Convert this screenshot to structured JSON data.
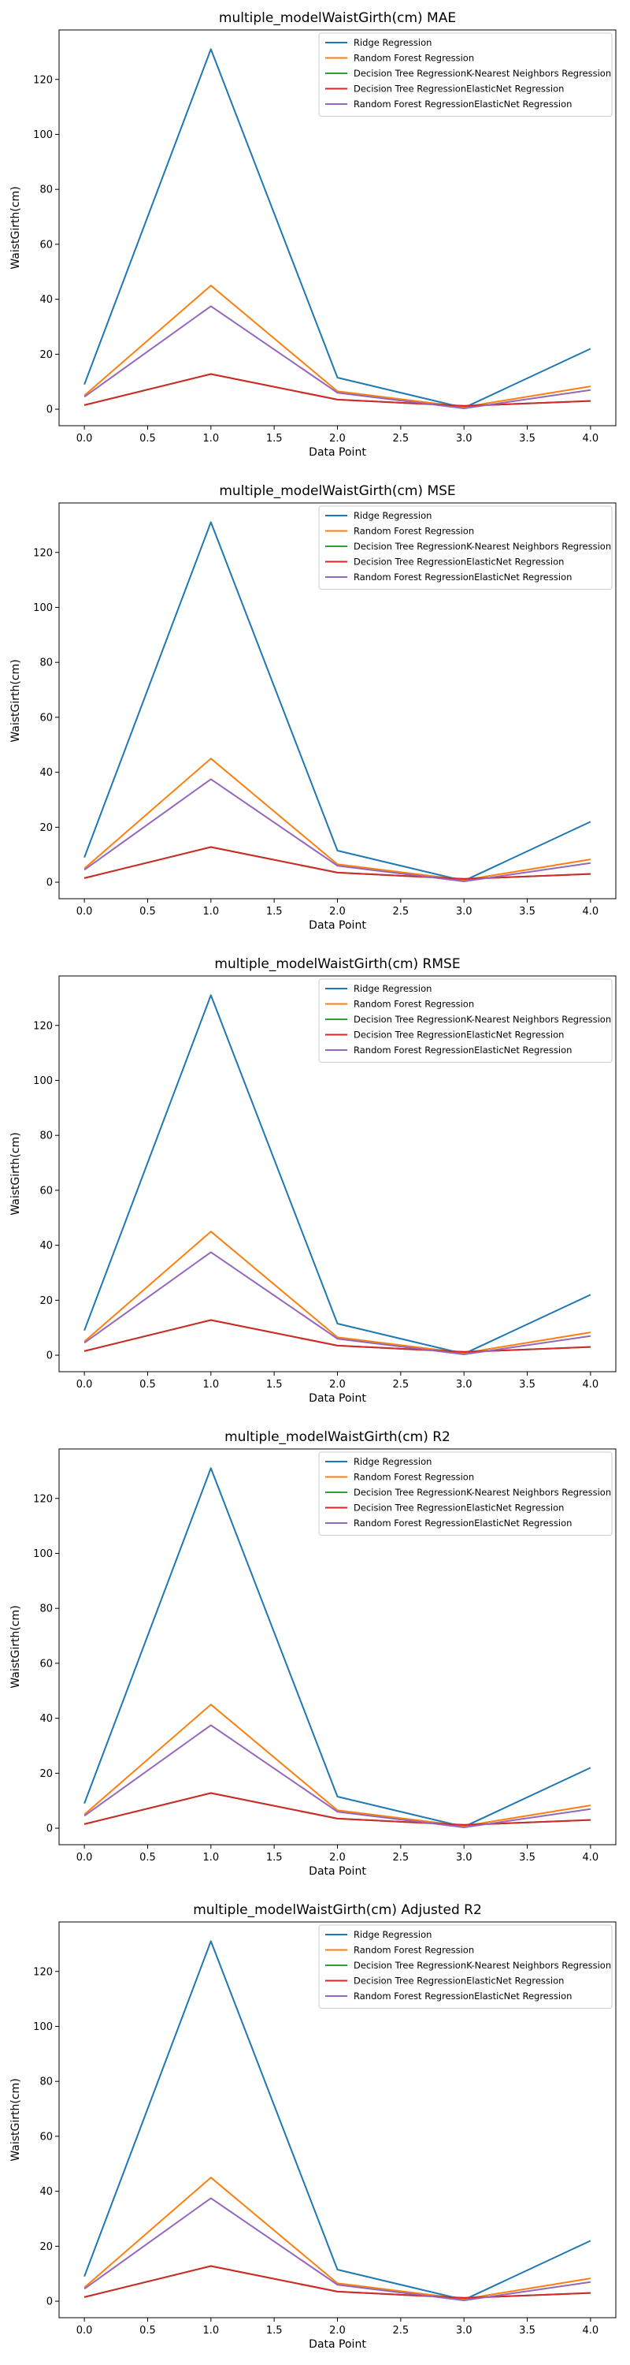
{
  "chart_data": [
    {
      "type": "line",
      "title": "multiple_modelWaistGirth(cm) MAE",
      "xlabel": "Data Point",
      "ylabel": "WaistGirth(cm)",
      "x": [
        0,
        1,
        2,
        3,
        4
      ],
      "xlim": [
        -0.2,
        4.2
      ],
      "ylim": [
        -6,
        138
      ],
      "xticks": [
        "0.0",
        "0.5",
        "1.0",
        "1.5",
        "2.0",
        "2.5",
        "3.0",
        "3.5",
        "4.0"
      ],
      "yticks": [
        "0",
        "20",
        "40",
        "60",
        "80",
        "100",
        "120"
      ],
      "legend_position": "top-right",
      "grid": false,
      "series": [
        {
          "name": "Ridge Regression",
          "color": "#1f77b4",
          "values": [
            9,
            131,
            11.5,
            0.5,
            22
          ]
        },
        {
          "name": "Random Forest Regression",
          "color": "#ff7f0e",
          "values": [
            5,
            45,
            6.5,
            0.8,
            8.3
          ]
        },
        {
          "name": "Decision Tree RegressionK-Nearest Neighbors Regression",
          "color": "#2ca02c",
          "values": [
            1.5,
            12.8,
            3.5,
            1.2,
            3.0
          ]
        },
        {
          "name": "Decision Tree RegressionElasticNet Regression",
          "color": "#d62728",
          "values": [
            1.5,
            12.8,
            3.5,
            1.2,
            3.0
          ]
        },
        {
          "name": "Random Forest RegressionElasticNet Regression",
          "color": "#9467bd",
          "values": [
            4.5,
            37.5,
            6,
            0.3,
            7
          ]
        }
      ]
    },
    {
      "type": "line",
      "title": "multiple_modelWaistGirth(cm) MSE",
      "xlabel": "Data Point",
      "ylabel": "WaistGirth(cm)",
      "x": [
        0,
        1,
        2,
        3,
        4
      ],
      "xlim": [
        -0.2,
        4.2
      ],
      "ylim": [
        -6,
        138
      ],
      "xticks": [
        "0.0",
        "0.5",
        "1.0",
        "1.5",
        "2.0",
        "2.5",
        "3.0",
        "3.5",
        "4.0"
      ],
      "yticks": [
        "0",
        "20",
        "40",
        "60",
        "80",
        "100",
        "120"
      ],
      "legend_position": "top-right",
      "grid": false,
      "series": [
        {
          "name": "Ridge Regression",
          "color": "#1f77b4",
          "values": [
            9,
            131,
            11.5,
            0.5,
            22
          ]
        },
        {
          "name": "Random Forest Regression",
          "color": "#ff7f0e",
          "values": [
            5,
            45,
            6.5,
            0.8,
            8.3
          ]
        },
        {
          "name": "Decision Tree RegressionK-Nearest Neighbors Regression",
          "color": "#2ca02c",
          "values": [
            1.5,
            12.8,
            3.5,
            1.2,
            3.0
          ]
        },
        {
          "name": "Decision Tree RegressionElasticNet Regression",
          "color": "#d62728",
          "values": [
            1.5,
            12.8,
            3.5,
            1.2,
            3.0
          ]
        },
        {
          "name": "Random Forest RegressionElasticNet Regression",
          "color": "#9467bd",
          "values": [
            4.5,
            37.5,
            6,
            0.3,
            7
          ]
        }
      ]
    },
    {
      "type": "line",
      "title": "multiple_modelWaistGirth(cm) RMSE",
      "xlabel": "Data Point",
      "ylabel": "WaistGirth(cm)",
      "x": [
        0,
        1,
        2,
        3,
        4
      ],
      "xlim": [
        -0.2,
        4.2
      ],
      "ylim": [
        -6,
        138
      ],
      "xticks": [
        "0.0",
        "0.5",
        "1.0",
        "1.5",
        "2.0",
        "2.5",
        "3.0",
        "3.5",
        "4.0"
      ],
      "yticks": [
        "0",
        "20",
        "40",
        "60",
        "80",
        "100",
        "120"
      ],
      "legend_position": "top-right",
      "grid": false,
      "series": [
        {
          "name": "Ridge Regression",
          "color": "#1f77b4",
          "values": [
            9,
            131,
            11.5,
            0.5,
            22
          ]
        },
        {
          "name": "Random Forest Regression",
          "color": "#ff7f0e",
          "values": [
            5,
            45,
            6.5,
            0.8,
            8.3
          ]
        },
        {
          "name": "Decision Tree RegressionK-Nearest Neighbors Regression",
          "color": "#2ca02c",
          "values": [
            1.5,
            12.8,
            3.5,
            1.2,
            3.0
          ]
        },
        {
          "name": "Decision Tree RegressionElasticNet Regression",
          "color": "#d62728",
          "values": [
            1.5,
            12.8,
            3.5,
            1.2,
            3.0
          ]
        },
        {
          "name": "Random Forest RegressionElasticNet Regression",
          "color": "#9467bd",
          "values": [
            4.5,
            37.5,
            6,
            0.3,
            7
          ]
        }
      ]
    },
    {
      "type": "line",
      "title": "multiple_modelWaistGirth(cm) R2",
      "xlabel": "Data Point",
      "ylabel": "WaistGirth(cm)",
      "x": [
        0,
        1,
        2,
        3,
        4
      ],
      "xlim": [
        -0.2,
        4.2
      ],
      "ylim": [
        -6,
        138
      ],
      "xticks": [
        "0.0",
        "0.5",
        "1.0",
        "1.5",
        "2.0",
        "2.5",
        "3.0",
        "3.5",
        "4.0"
      ],
      "yticks": [
        "0",
        "20",
        "40",
        "60",
        "80",
        "100",
        "120"
      ],
      "legend_position": "top-right",
      "grid": false,
      "series": [
        {
          "name": "Ridge Regression",
          "color": "#1f77b4",
          "values": [
            9,
            131,
            11.5,
            0.5,
            22
          ]
        },
        {
          "name": "Random Forest Regression",
          "color": "#ff7f0e",
          "values": [
            5,
            45,
            6.5,
            0.8,
            8.3
          ]
        },
        {
          "name": "Decision Tree RegressionK-Nearest Neighbors Regression",
          "color": "#2ca02c",
          "values": [
            1.5,
            12.8,
            3.5,
            1.2,
            3.0
          ]
        },
        {
          "name": "Decision Tree RegressionElasticNet Regression",
          "color": "#d62728",
          "values": [
            1.5,
            12.8,
            3.5,
            1.2,
            3.0
          ]
        },
        {
          "name": "Random Forest RegressionElasticNet Regression",
          "color": "#9467bd",
          "values": [
            4.5,
            37.5,
            6,
            0.3,
            7
          ]
        }
      ]
    },
    {
      "type": "line",
      "title": "multiple_modelWaistGirth(cm) Adjusted R2",
      "xlabel": "Data Point",
      "ylabel": "WaistGirth(cm)",
      "x": [
        0,
        1,
        2,
        3,
        4
      ],
      "xlim": [
        -0.2,
        4.2
      ],
      "ylim": [
        -6,
        138
      ],
      "xticks": [
        "0.0",
        "0.5",
        "1.0",
        "1.5",
        "2.0",
        "2.5",
        "3.0",
        "3.5",
        "4.0"
      ],
      "yticks": [
        "0",
        "20",
        "40",
        "60",
        "80",
        "100",
        "120"
      ],
      "legend_position": "top-right",
      "grid": false,
      "series": [
        {
          "name": "Ridge Regression",
          "color": "#1f77b4",
          "values": [
            9,
            131,
            11.5,
            0.5,
            22
          ]
        },
        {
          "name": "Random Forest Regression",
          "color": "#ff7f0e",
          "values": [
            5,
            45,
            6.5,
            0.8,
            8.3
          ]
        },
        {
          "name": "Decision Tree RegressionK-Nearest Neighbors Regression",
          "color": "#2ca02c",
          "values": [
            1.5,
            12.8,
            3.5,
            1.2,
            3.0
          ]
        },
        {
          "name": "Decision Tree RegressionElasticNet Regression",
          "color": "#d62728",
          "values": [
            1.5,
            12.8,
            3.5,
            1.2,
            3.0
          ]
        },
        {
          "name": "Random Forest RegressionElasticNet Regression",
          "color": "#9467bd",
          "values": [
            4.5,
            37.5,
            6,
            0.3,
            7
          ]
        }
      ]
    }
  ]
}
